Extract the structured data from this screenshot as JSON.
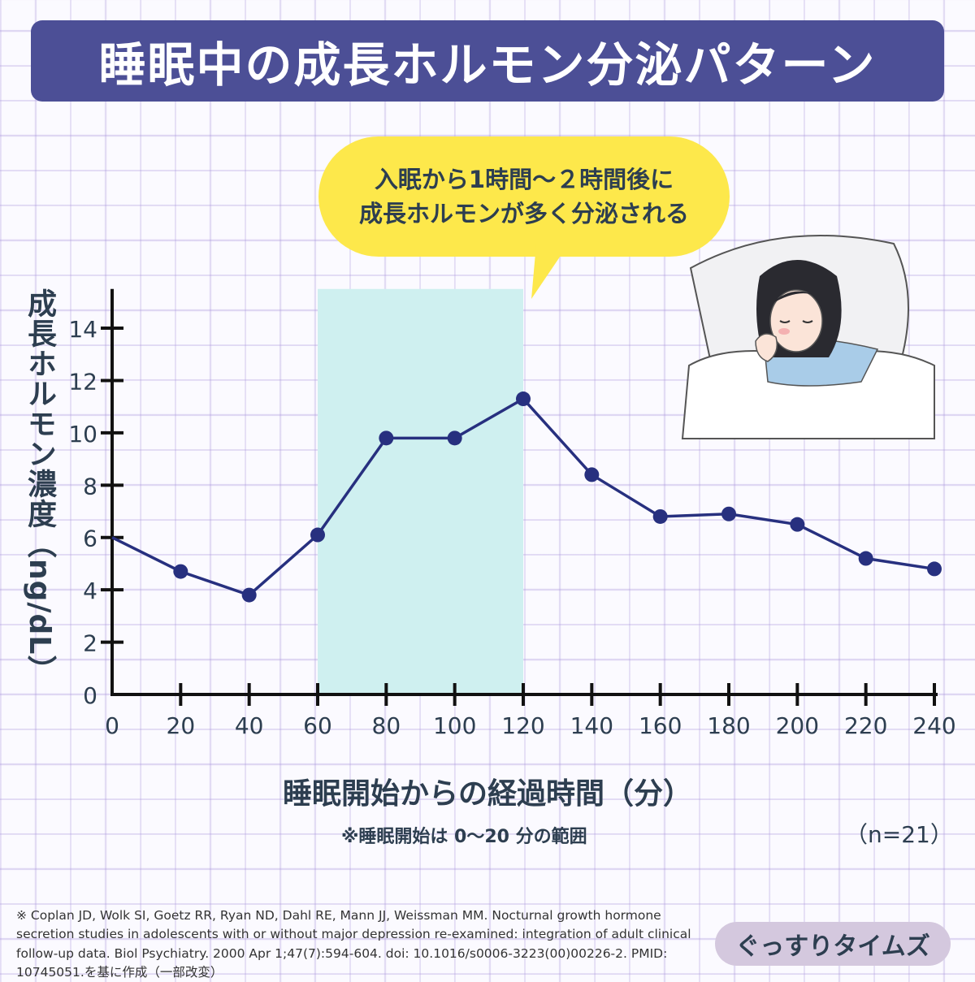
{
  "title": "睡眠中の成長ホルモン分泌パターン",
  "callout": {
    "line1": "入眠から1時間〜２時間後に",
    "line2": "成長ホルモンが多く分泌される"
  },
  "note": "※睡眠開始は 0〜20 分の範囲",
  "sample_size": "（n=21）",
  "citation": "※ Coplan JD, Wolk SI, Goetz RR, Ryan ND, Dahl RE, Mann JJ, Weissman MM. Nocturnal growth hormone secretion studies in adolescents with or without major depression re-examined: integration of adult clinical follow-up data. Biol Psychiatry. 2000 Apr 1;47(7):594-604. doi: 10.1016/s0006-3223(00)00226-2. PMID: 10745051.を基に作成（一部改変）",
  "brand": "ぐっすりタイムズ",
  "colors": {
    "title_bg": "#4c4f96",
    "line": "#27307f",
    "highlight": "#cff0f0",
    "callout": "#fde84b"
  },
  "chart_data": {
    "type": "line",
    "xlabel": "睡眠開始からの経過時間（分）",
    "ylabel": "成長ホルモン濃度（ng/dL）",
    "x": [
      0,
      20,
      40,
      60,
      80,
      100,
      120,
      140,
      160,
      180,
      200,
      220,
      240
    ],
    "y": [
      6.0,
      4.7,
      3.8,
      6.1,
      9.8,
      9.8,
      11.3,
      8.4,
      6.8,
      6.9,
      6.5,
      5.2,
      4.8
    ],
    "xlim": [
      0,
      240
    ],
    "ylim": [
      0,
      15.5
    ],
    "xticks": [
      "0",
      "20",
      "40",
      "60",
      "80",
      "100",
      "120",
      "140",
      "160",
      "180",
      "200",
      "220",
      "240"
    ],
    "yticks": [
      "0",
      "2",
      "4",
      "6",
      "8",
      "10",
      "12",
      "14"
    ],
    "highlight_range": [
      60,
      120
    ],
    "grid": false
  }
}
